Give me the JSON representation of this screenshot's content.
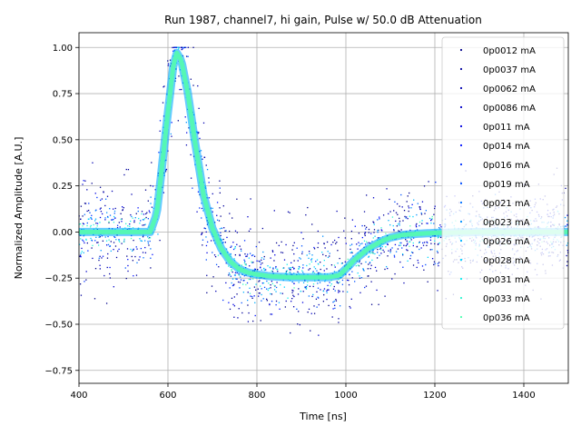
{
  "chart_data": {
    "type": "scatter",
    "title": "Run 1987, channel7, hi gain, Pulse w/ 50.0 dB Attenuation",
    "xlabel": "Time [ns]",
    "ylabel": "Normalized Amplitude [A.U.]",
    "xlim": [
      400,
      1500
    ],
    "ylim": [
      -0.82,
      1.08
    ],
    "grid": true,
    "legend_position": "upper-right",
    "x_ticks": [
      400,
      600,
      800,
      1000,
      1200,
      1400
    ],
    "x_tick_labels": [
      "400",
      "600",
      "800",
      "1000",
      "1200",
      "1400"
    ],
    "y_ticks": [
      1.0,
      0.75,
      0.5,
      0.25,
      0.0,
      -0.25,
      -0.5,
      -0.75
    ],
    "y_tick_labels": [
      "1.00",
      "0.75",
      "0.50",
      "0.25",
      "0.00",
      "−0.25",
      "−0.50",
      "−0.75"
    ],
    "series": [
      {
        "name": "0p0012 mA",
        "color": "#00008b"
      },
      {
        "name": "0p0037 mA",
        "color": "#00009c"
      },
      {
        "name": "0p0062 mA",
        "color": "#0000b0"
      },
      {
        "name": "0p0086 mA",
        "color": "#0000c8"
      },
      {
        "name": "0p011 mA",
        "color": "#0000e0"
      },
      {
        "name": "0p014 mA",
        "color": "#0010ff"
      },
      {
        "name": "0p016 mA",
        "color": "#0030ff"
      },
      {
        "name": "0p019 mA",
        "color": "#0050ff"
      },
      {
        "name": "0p021 mA",
        "color": "#0070ff"
      },
      {
        "name": "0p023 mA",
        "color": "#0090ff"
      },
      {
        "name": "0p026 mA",
        "color": "#00b0ff"
      },
      {
        "name": "0p028 mA",
        "color": "#00d4ff"
      },
      {
        "name": "0p031 mA",
        "color": "#10ecf0"
      },
      {
        "name": "0p033 mA",
        "color": "#30f4d0"
      },
      {
        "name": "0p036 mA",
        "color": "#50ffb0"
      }
    ],
    "mean_waveform": {
      "x": [
        400,
        560,
        575,
        600,
        612,
        620,
        630,
        645,
        660,
        680,
        700,
        720,
        740,
        760,
        780,
        800,
        830,
        870,
        920,
        960,
        985,
        1000,
        1020,
        1050,
        1080,
        1100,
        1130,
        1160,
        1200,
        1300,
        1400,
        1500
      ],
      "y": [
        0.0,
        0.0,
        0.1,
        0.65,
        0.9,
        0.97,
        0.93,
        0.75,
        0.5,
        0.2,
        0.02,
        -0.09,
        -0.16,
        -0.2,
        -0.22,
        -0.23,
        -0.24,
        -0.245,
        -0.245,
        -0.245,
        -0.235,
        -0.2,
        -0.15,
        -0.09,
        -0.05,
        -0.03,
        -0.015,
        -0.01,
        -0.005,
        0.0,
        0.0,
        0.0
      ]
    }
  }
}
